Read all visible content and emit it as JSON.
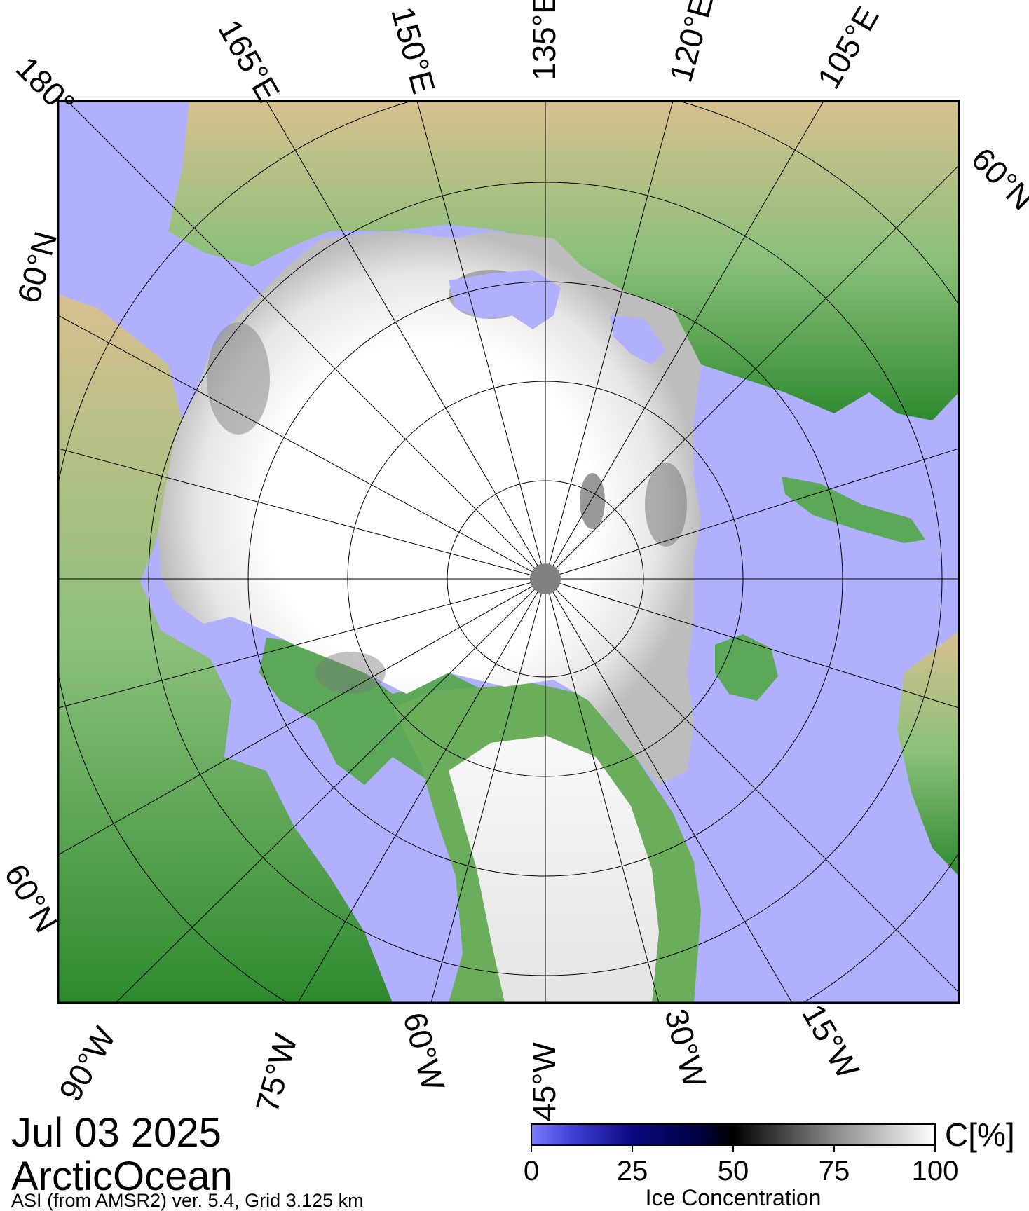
{
  "map": {
    "date": "Jul 03 2025",
    "region": "ArcticOcean",
    "source": "ASI (from AMSR2) ver. 5.4,  Grid 3.125 km",
    "projection": "polar stereographic, north pole",
    "top_labels": [
      "180°",
      "165°E",
      "150°E",
      "135°E",
      "120°E",
      "105°E"
    ],
    "right_label": "60°N",
    "left_top_label": "60°N",
    "left_bottom_label": "60°N",
    "bottom_labels": [
      "90°W",
      "75°W",
      "60°W",
      "45°W",
      "30°W",
      "15°W"
    ],
    "features": [
      "sea-ice",
      "open-ocean",
      "land-topography",
      "greenland-ice-sheet",
      "pole-hole",
      "graticule"
    ]
  },
  "colorbar": {
    "ticks": [
      "0",
      "25",
      "50",
      "75",
      "100"
    ],
    "unit": "C[%]",
    "title": "Ice Concentration",
    "range": [
      0,
      100
    ]
  },
  "colors": {
    "ocean": "#b0b0ff",
    "ice": "#ffffff",
    "land_low": "#3a9a3a",
    "land_high": "#c8a878",
    "pole_hole": "#808080",
    "grid": "#000000"
  }
}
